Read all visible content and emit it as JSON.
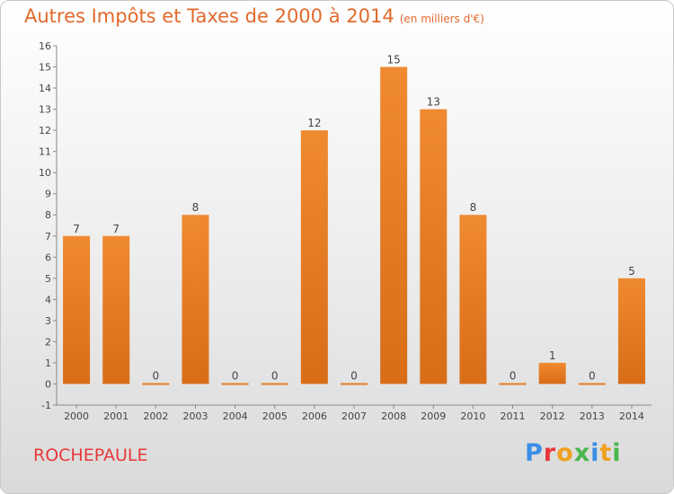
{
  "title": "Autres Impôts et Taxes de 2000 à 2014",
  "subtitle": "(en milliers d'€)",
  "commune": "ROCHEPAULE",
  "logo": {
    "letters": [
      "P",
      "r",
      "o",
      "x",
      "i",
      "t",
      "i"
    ],
    "colors": [
      "#3b8ee6",
      "#e8383b",
      "#f0a020",
      "#49b64a",
      "#3b8ee6",
      "#f0a020",
      "#49b64a"
    ]
  },
  "chart_data": {
    "type": "bar",
    "categories": [
      "2000",
      "2001",
      "2002",
      "2003",
      "2004",
      "2005",
      "2006",
      "2007",
      "2008",
      "2009",
      "2010",
      "2011",
      "2012",
      "2013",
      "2014"
    ],
    "values": [
      7,
      7,
      0,
      8,
      0,
      0,
      12,
      0,
      15,
      13,
      8,
      0,
      1,
      0,
      5
    ],
    "data_labels": [
      "7",
      "7",
      "0",
      "8",
      "0",
      "0",
      "12",
      "0",
      "15",
      "13",
      "8",
      "0",
      "1",
      "0",
      "5"
    ],
    "yticks": [
      "-1",
      "0",
      "1",
      "2",
      "3",
      "4",
      "5",
      "6",
      "7",
      "8",
      "9",
      "10",
      "11",
      "12",
      "13",
      "14",
      "15",
      "16"
    ],
    "ylim": [
      -1,
      16
    ],
    "grid": false,
    "bar_color": "#f08a30",
    "bar_color_dark": "#d86d18"
  }
}
